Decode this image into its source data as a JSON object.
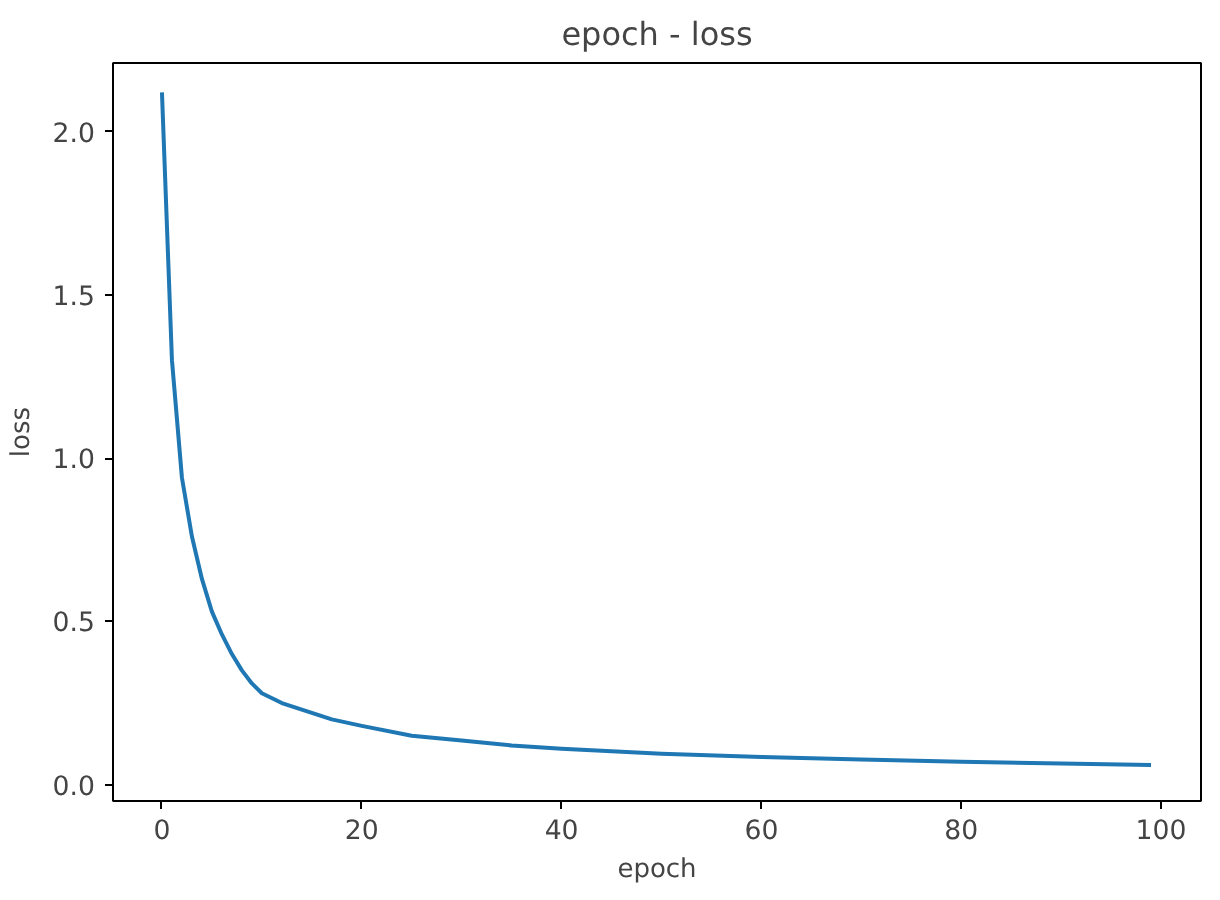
{
  "chart_data": {
    "type": "line",
    "title": "epoch - loss",
    "xlabel": "epoch",
    "ylabel": "loss",
    "x": [
      0,
      1,
      2,
      3,
      4,
      5,
      6,
      7,
      8,
      9,
      10,
      12,
      15,
      17,
      20,
      25,
      30,
      35,
      40,
      50,
      60,
      70,
      80,
      90,
      99
    ],
    "series": [
      {
        "color": "#1f77b4",
        "values": [
          2.12,
          1.3,
          0.94,
          0.76,
          0.63,
          0.53,
          0.46,
          0.4,
          0.35,
          0.31,
          0.28,
          0.25,
          0.22,
          0.2,
          0.18,
          0.15,
          0.135,
          0.12,
          0.11,
          0.095,
          0.085,
          0.077,
          0.07,
          0.065,
          0.06
        ]
      }
    ],
    "xlim": [
      -4.9,
      104
    ],
    "ylim": [
      -0.05,
      2.21
    ],
    "xticks": [
      0,
      20,
      40,
      60,
      80,
      100
    ],
    "yticks": [
      {
        "value": 0,
        "label": "0.0"
      },
      {
        "value": 0.5,
        "label": "0.5"
      },
      {
        "value": 1,
        "label": "1.0"
      },
      {
        "value": 1.5,
        "label": "1.5"
      },
      {
        "value": 2,
        "label": "2.0"
      }
    ],
    "grid": false,
    "marker": "none",
    "line_style": "solid"
  }
}
